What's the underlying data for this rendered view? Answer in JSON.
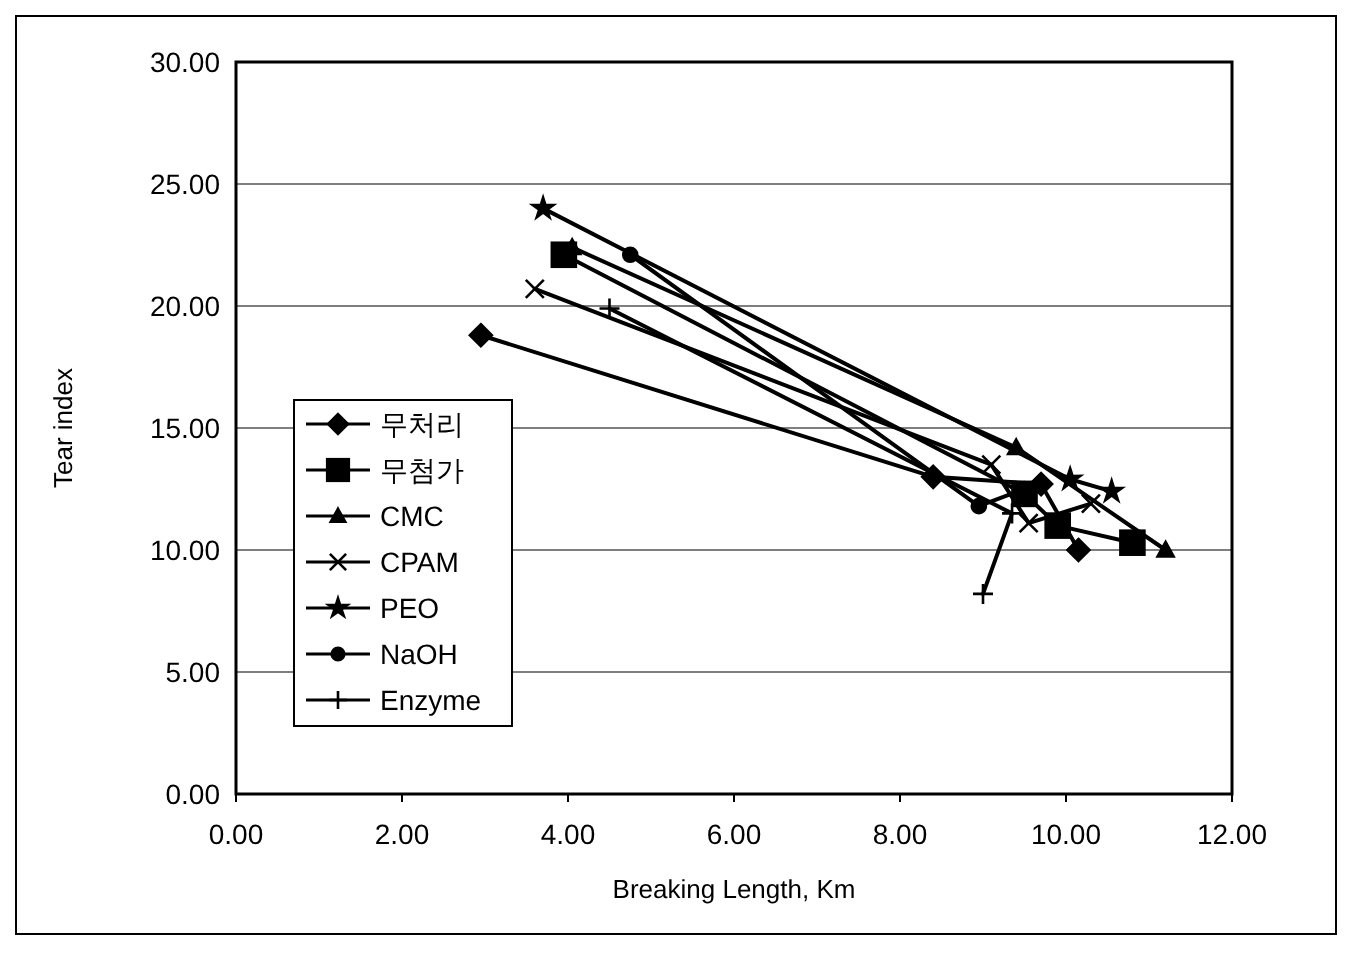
{
  "chart_data": {
    "type": "line",
    "xlabel": "Breaking Length, Km",
    "ylabel": "Tear index",
    "xlim": [
      0,
      12
    ],
    "ylim": [
      0,
      30
    ],
    "xticks": [
      {
        "value": 0,
        "label": "0.00"
      },
      {
        "value": 2,
        "label": "2.00"
      },
      {
        "value": 4,
        "label": "4.00"
      },
      {
        "value": 6,
        "label": "6.00"
      },
      {
        "value": 8,
        "label": "8.00"
      },
      {
        "value": 10,
        "label": "10.00"
      },
      {
        "value": 12,
        "label": "12.00"
      }
    ],
    "yticks": [
      {
        "value": 0,
        "label": "0.00"
      },
      {
        "value": 5,
        "label": "5.00"
      },
      {
        "value": 10,
        "label": "10.00"
      },
      {
        "value": 15,
        "label": "15.00"
      },
      {
        "value": 20,
        "label": "20.00"
      },
      {
        "value": 25,
        "label": "25.00"
      },
      {
        "value": 30,
        "label": "30.00"
      }
    ],
    "grid": "y",
    "legend": "left",
    "series": [
      {
        "name": "무처리",
        "color": "#000000",
        "marker": "diamond",
        "x": [
          2.95,
          8.4,
          9.7,
          10.15
        ],
        "values": [
          18.8,
          13.0,
          12.7,
          10.0
        ]
      },
      {
        "name": "무첨가",
        "color": "#000000",
        "marker": "square",
        "x": [
          3.95,
          9.5,
          9.9,
          10.8
        ],
        "values": [
          22.1,
          12.3,
          11.0,
          10.3
        ]
      },
      {
        "name": "CMC",
        "color": "#000000",
        "marker": "triangle",
        "x": [
          4.05,
          9.4,
          11.2
        ],
        "values": [
          22.4,
          14.2,
          10.0
        ]
      },
      {
        "name": "CPAM",
        "color": "#000000",
        "marker": "cross",
        "x": [
          3.6,
          9.1,
          9.55,
          10.3
        ],
        "values": [
          20.7,
          13.5,
          11.1,
          11.9
        ]
      },
      {
        "name": "PEO",
        "color": "#000000",
        "marker": "star",
        "x": [
          3.7,
          10.05,
          10.55
        ],
        "values": [
          24.0,
          12.9,
          12.4
        ]
      },
      {
        "name": "NaOH",
        "color": "#000000",
        "marker": "circle",
        "x": [
          4.75,
          8.95,
          9.5
        ],
        "values": [
          22.1,
          11.8,
          12.5
        ]
      },
      {
        "name": "Enzyme",
        "color": "#000000",
        "marker": "plus",
        "x": [
          4.5,
          9.35,
          9.0
        ],
        "values": [
          19.9,
          11.5,
          8.2
        ]
      }
    ]
  }
}
